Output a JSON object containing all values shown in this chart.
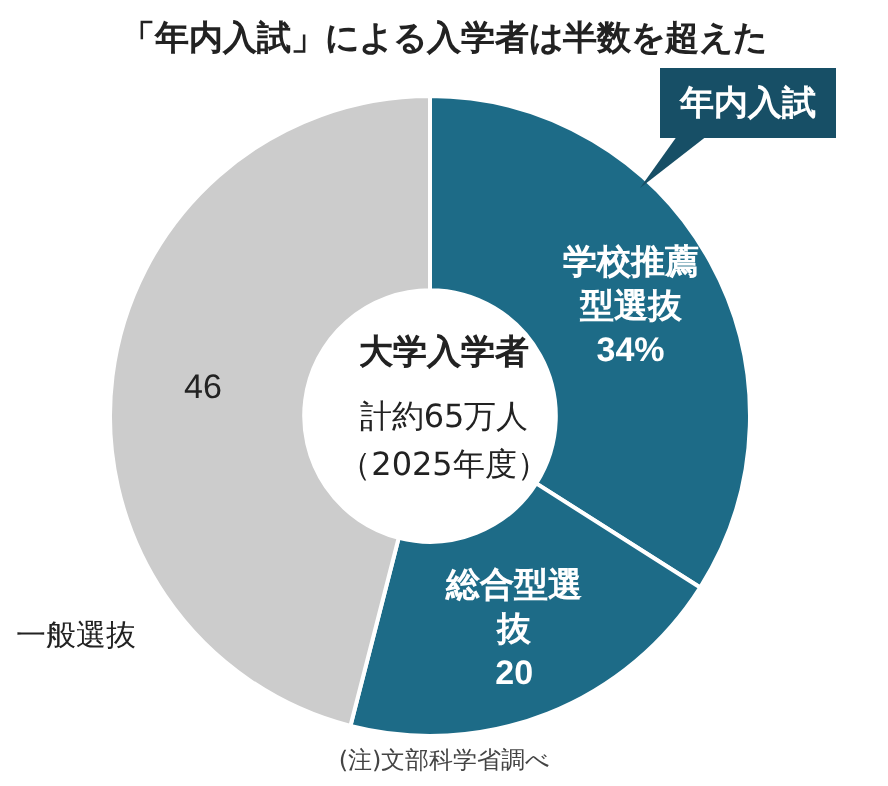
{
  "chart_data": {
    "type": "donut",
    "title": "「年内入試」による入学者は半数を超えた",
    "categories": [
      "学校推薦型選抜",
      "総合型選抜",
      "一般選抜"
    ],
    "values": [
      34,
      20,
      46
    ],
    "value_labels": [
      "34%",
      "20",
      "46"
    ],
    "colors": [
      "#1d6b87",
      "#1d6b87",
      "#cccccc"
    ],
    "legend": false,
    "annotations": [
      "大学入学者",
      "計約65万人",
      "（2025年度）",
      "年内入試",
      "(注)文部科学省調べ"
    ]
  }
}
